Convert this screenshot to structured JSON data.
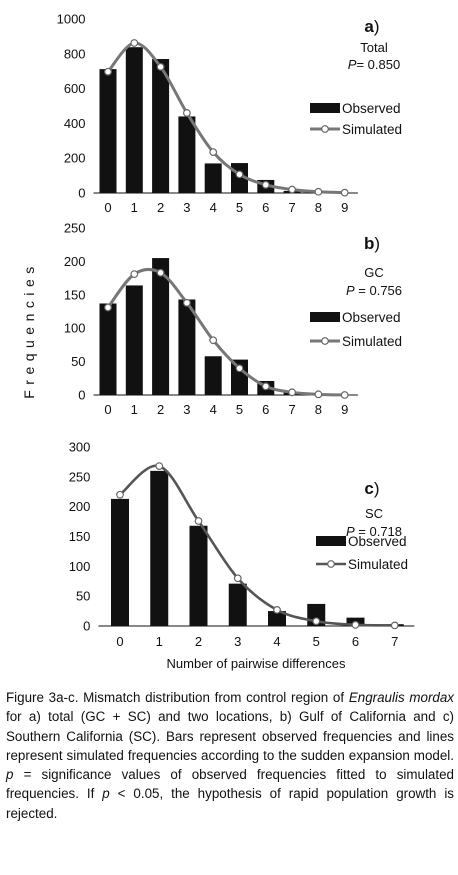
{
  "figure": {
    "ylabel": "Frequencies",
    "xlabel": "Number of pairwise differences",
    "legend": {
      "observed": "Observed",
      "simulated": "Simulated"
    }
  },
  "chart_data": [
    {
      "type": "bar",
      "panel": "a",
      "name": "Total",
      "p_value": "P= 0.850",
      "categories": [
        0,
        1,
        2,
        3,
        4,
        5,
        6,
        7,
        8,
        9
      ],
      "series": [
        {
          "name": "Observed",
          "type": "bar",
          "values": [
            712,
            838,
            770,
            440,
            170,
            172,
            75,
            12,
            5,
            0
          ]
        },
        {
          "name": "Simulated",
          "type": "line",
          "values": [
            697,
            862,
            725,
            460,
            235,
            107,
            47,
            20,
            7,
            2
          ]
        }
      ],
      "ylim": [
        0,
        1000
      ],
      "yticks": [
        0,
        200,
        400,
        600,
        800,
        1000
      ],
      "colors": {
        "bar": "#111111",
        "line": "#777777",
        "marker_fill": "#ffffff"
      }
    },
    {
      "type": "bar",
      "panel": "b",
      "name": "GC",
      "p_value": "P = 0.756",
      "categories": [
        0,
        1,
        2,
        3,
        4,
        5,
        6,
        7,
        8,
        9
      ],
      "series": [
        {
          "name": "Observed",
          "type": "bar",
          "values": [
            137,
            164,
            205,
            143,
            58,
            53,
            21,
            4,
            0,
            0
          ]
        },
        {
          "name": "Simulated",
          "type": "line",
          "values": [
            131,
            181,
            183,
            138,
            82,
            40,
            13,
            4,
            1,
            0
          ]
        }
      ],
      "ylim": [
        0,
        250
      ],
      "yticks": [
        0,
        50,
        100,
        150,
        200,
        250
      ],
      "colors": {
        "bar": "#111111",
        "line": "#777777",
        "marker_fill": "#ffffff"
      }
    },
    {
      "type": "bar",
      "panel": "c",
      "name": "SC",
      "p_value": "P = 0.718",
      "categories": [
        0,
        1,
        2,
        3,
        4,
        5,
        6,
        7
      ],
      "series": [
        {
          "name": "Observed",
          "type": "bar",
          "values": [
            213,
            260,
            168,
            71,
            25,
            37,
            14,
            3
          ]
        },
        {
          "name": "Simulated",
          "type": "line",
          "values": [
            220,
            268,
            176,
            80,
            27,
            8,
            2,
            1
          ]
        }
      ],
      "ylim": [
        0,
        300
      ],
      "yticks": [
        0,
        50,
        100,
        150,
        200,
        250,
        300
      ],
      "colors": {
        "bar": "#111111",
        "line": "#555555",
        "marker_fill": "#ffffff"
      }
    }
  ],
  "caption": {
    "segments": [
      {
        "text": "Figure 3a-c. Mismatch distribution from control region of ",
        "italic": false
      },
      {
        "text": "Engraulis mordax",
        "italic": true
      },
      {
        "text": " for a) total (GC + SC) and two locations, b) Gulf of California and c) Southern California (SC). Bars represent observed frequencies and lines represent simulated frequencies according to the sudden expansion model. ",
        "italic": false
      },
      {
        "text": "p",
        "italic": true
      },
      {
        "text": " = significance values of observed frequencies fitted to simulated frequencies. If ",
        "italic": false
      },
      {
        "text": "p",
        "italic": true
      },
      {
        "text": " < 0.05, the hypothesis of rapid population growth is rejected.",
        "italic": false
      }
    ]
  }
}
